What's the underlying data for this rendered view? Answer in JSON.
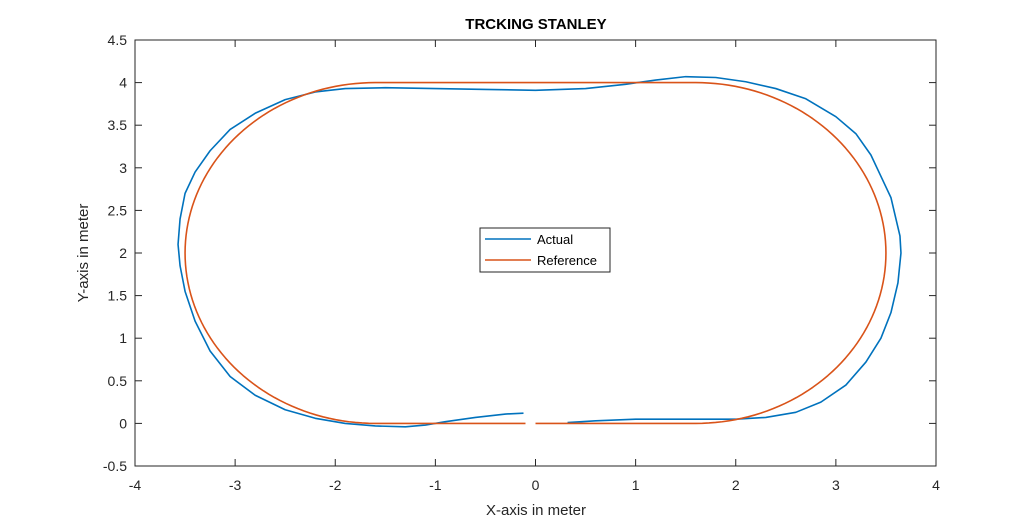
{
  "chart_data": {
    "type": "line",
    "title": "TRCKING STANLEY",
    "xlabel": "X-axis in meter",
    "ylabel": "Y-axis in meter",
    "xlim": [
      -4,
      4
    ],
    "ylim": [
      -0.5,
      4.5
    ],
    "xticks": [
      -4,
      -3,
      -2,
      -1,
      0,
      1,
      2,
      3,
      4
    ],
    "yticks": [
      -0.5,
      0,
      0.5,
      1,
      1.5,
      2,
      2.5,
      3,
      3.5,
      4,
      4.5
    ],
    "grid": false,
    "legend_position": "center",
    "series": [
      {
        "name": "Actual",
        "color": "#0072BD",
        "x": [
          -0.12,
          -0.3,
          -0.6,
          -0.9,
          -1.1,
          -1.3,
          -1.6,
          -1.9,
          -2.2,
          -2.5,
          -2.8,
          -3.05,
          -3.25,
          -3.4,
          -3.5,
          -3.55,
          -3.57,
          -3.55,
          -3.5,
          -3.4,
          -3.25,
          -3.05,
          -2.8,
          -2.5,
          -2.2,
          -1.9,
          -1.5,
          -1.0,
          -0.5,
          0.0,
          0.5,
          0.9,
          1.2,
          1.5,
          1.8,
          2.1,
          2.4,
          2.7,
          3.0,
          3.2,
          3.35,
          3.45,
          3.55,
          3.6,
          3.64,
          3.65,
          3.62,
          3.55,
          3.45,
          3.3,
          3.1,
          2.85,
          2.6,
          2.3,
          2.0,
          1.5,
          1.0,
          0.6,
          0.32
        ],
        "y": [
          0.12,
          0.11,
          0.07,
          0.02,
          -0.02,
          -0.04,
          -0.03,
          0.0,
          0.06,
          0.16,
          0.33,
          0.55,
          0.85,
          1.2,
          1.55,
          1.85,
          2.1,
          2.4,
          2.7,
          2.95,
          3.2,
          3.45,
          3.64,
          3.8,
          3.89,
          3.93,
          3.94,
          3.93,
          3.92,
          3.91,
          3.93,
          3.98,
          4.03,
          4.07,
          4.06,
          4.01,
          3.93,
          3.81,
          3.6,
          3.4,
          3.15,
          2.9,
          2.65,
          2.4,
          2.2,
          2.0,
          1.65,
          1.3,
          1.0,
          0.72,
          0.45,
          0.25,
          0.13,
          0.07,
          0.05,
          0.05,
          0.05,
          0.03,
          0.01
        ]
      },
      {
        "name": "Reference",
        "color": "#D95319",
        "segments": [
          {
            "shape": "line",
            "x": [
              -0.1,
              -1.6
            ],
            "y": [
              0,
              0
            ]
          },
          {
            "shape": "arc",
            "cx": -1.6,
            "cy": 2.0,
            "rx": 1.9,
            "ry": 2.0,
            "from_deg": 270,
            "to_deg": 90,
            "direction": "clockwise"
          },
          {
            "shape": "line",
            "x": [
              -1.6,
              1.6
            ],
            "y": [
              4,
              4
            ]
          },
          {
            "shape": "arc",
            "cx": 1.6,
            "cy": 2.0,
            "rx": 1.9,
            "ry": 2.0,
            "from_deg": 90,
            "to_deg": -90,
            "direction": "clockwise"
          },
          {
            "shape": "line",
            "x": [
              1.6,
              0.0
            ],
            "y": [
              0,
              0
            ]
          }
        ]
      }
    ]
  }
}
